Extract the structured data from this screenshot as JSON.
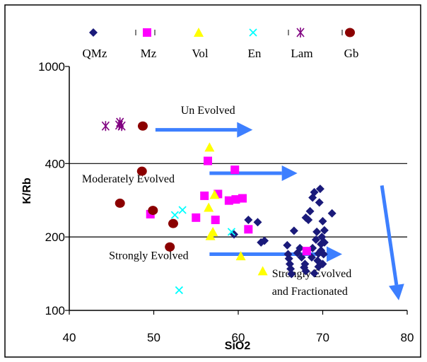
{
  "chart_data": {
    "type": "scatter",
    "xlabel": "SiO2",
    "ylabel": "K/Rb",
    "xlim": [
      40,
      80
    ],
    "ylim": [
      100,
      1000
    ],
    "yscale": "log",
    "xticks": [
      "40",
      "50",
      "60",
      "70",
      "80"
    ],
    "yticks": [
      "100",
      "200",
      "400",
      "1000"
    ],
    "gridlines_y": [
      200,
      400
    ],
    "legend_position": "top",
    "series": [
      {
        "name": "QMz",
        "marker": "diamond",
        "color": "#1a1a7a",
        "points": [
          [
            59.5,
            205
          ],
          [
            61.2,
            235
          ],
          [
            62.3,
            230
          ],
          [
            62.7,
            190
          ],
          [
            63.1,
            193
          ],
          [
            65.8,
            185
          ],
          [
            65.9,
            170
          ],
          [
            66.0,
            163
          ],
          [
            66.1,
            155
          ],
          [
            66.2,
            148
          ],
          [
            66.3,
            141
          ],
          [
            66.6,
            212
          ],
          [
            67.0,
            172
          ],
          [
            67.3,
            180
          ],
          [
            67.5,
            165
          ],
          [
            67.8,
            150
          ],
          [
            67.9,
            155
          ],
          [
            68.0,
            145
          ],
          [
            68.0,
            240
          ],
          [
            68.3,
            235
          ],
          [
            68.5,
            255
          ],
          [
            68.7,
            165
          ],
          [
            68.8,
            180
          ],
          [
            68.8,
            290
          ],
          [
            69.0,
            305
          ],
          [
            69.0,
            142
          ],
          [
            69.2,
            195
          ],
          [
            69.3,
            210
          ],
          [
            69.4,
            160
          ],
          [
            69.5,
            171
          ],
          [
            69.5,
            151
          ],
          [
            69.6,
            277
          ],
          [
            69.7,
            315
          ],
          [
            69.8,
            187
          ],
          [
            69.8,
            176
          ],
          [
            69.9,
            200
          ],
          [
            70.0,
            232
          ],
          [
            70.0,
            155
          ],
          [
            70.1,
            170
          ],
          [
            70.2,
            213
          ],
          [
            70.2,
            190
          ],
          [
            71.1,
            250
          ]
        ]
      },
      {
        "name": "Mz",
        "marker": "square",
        "color": "#ff00ff",
        "points": [
          [
            49.6,
            248
          ],
          [
            55.0,
            240
          ],
          [
            56.0,
            295
          ],
          [
            56.4,
            410
          ],
          [
            57.3,
            235
          ],
          [
            57.6,
            300
          ],
          [
            58.9,
            282
          ],
          [
            59.6,
            377
          ],
          [
            59.7,
            285
          ],
          [
            60.5,
            288
          ],
          [
            61.2,
            215
          ],
          [
            68.1,
            175
          ]
        ]
      },
      {
        "name": "Vol",
        "marker": "triangle",
        "color": "#ffff00",
        "points": [
          [
            56.6,
            466
          ],
          [
            56.5,
            264
          ],
          [
            57.2,
            298
          ],
          [
            56.7,
            202
          ],
          [
            57.0,
            210
          ],
          [
            60.3,
            167
          ],
          [
            62.9,
            145
          ]
        ]
      },
      {
        "name": "En",
        "marker": "x",
        "color": "#00ffff",
        "points": [
          [
            52.5,
            246
          ],
          [
            53.4,
            258
          ],
          [
            59.2,
            210
          ],
          [
            53.0,
            121
          ]
        ]
      },
      {
        "name": "Lam",
        "marker": "asterisk",
        "color": "#800080",
        "points": [
          [
            44.3,
            570
          ],
          [
            46.0,
            590
          ],
          [
            46.2,
            570
          ],
          [
            45.9,
            575
          ]
        ]
      },
      {
        "name": "Gb",
        "marker": "circle",
        "color": "#8b0000",
        "points": [
          [
            48.7,
            570
          ],
          [
            48.6,
            372
          ],
          [
            46.0,
            275
          ],
          [
            49.9,
            257
          ],
          [
            52.3,
            227
          ],
          [
            51.9,
            182
          ]
        ]
      }
    ],
    "annotations": [
      {
        "text": "Un Evolved",
        "x": 53.2,
        "y": 640
      },
      {
        "text": "Moderately Evolved",
        "x": 41.5,
        "y": 335
      },
      {
        "text": "Strongly Evolved",
        "x": 44.7,
        "y": 162
      },
      {
        "text": "Strongly Evolved",
        "x": 64.0,
        "y": 137
      },
      {
        "text": "and Fractionated",
        "x": 64.0,
        "y": 116
      }
    ],
    "arrows": [
      {
        "x1": 50.2,
        "y1": 550,
        "x2": 61.7,
        "y2": 550
      },
      {
        "x1": 56.6,
        "y1": 365,
        "x2": 67.0,
        "y2": 365
      },
      {
        "x1": 56.6,
        "y1": 170,
        "x2": 72.3,
        "y2": 170
      },
      {
        "x1": 77.0,
        "y1": 325,
        "x2": 79.0,
        "y2": 110
      }
    ],
    "colors": {
      "arrow": "#3d7fff",
      "gridline": "#000000",
      "frame": "#000000"
    }
  }
}
